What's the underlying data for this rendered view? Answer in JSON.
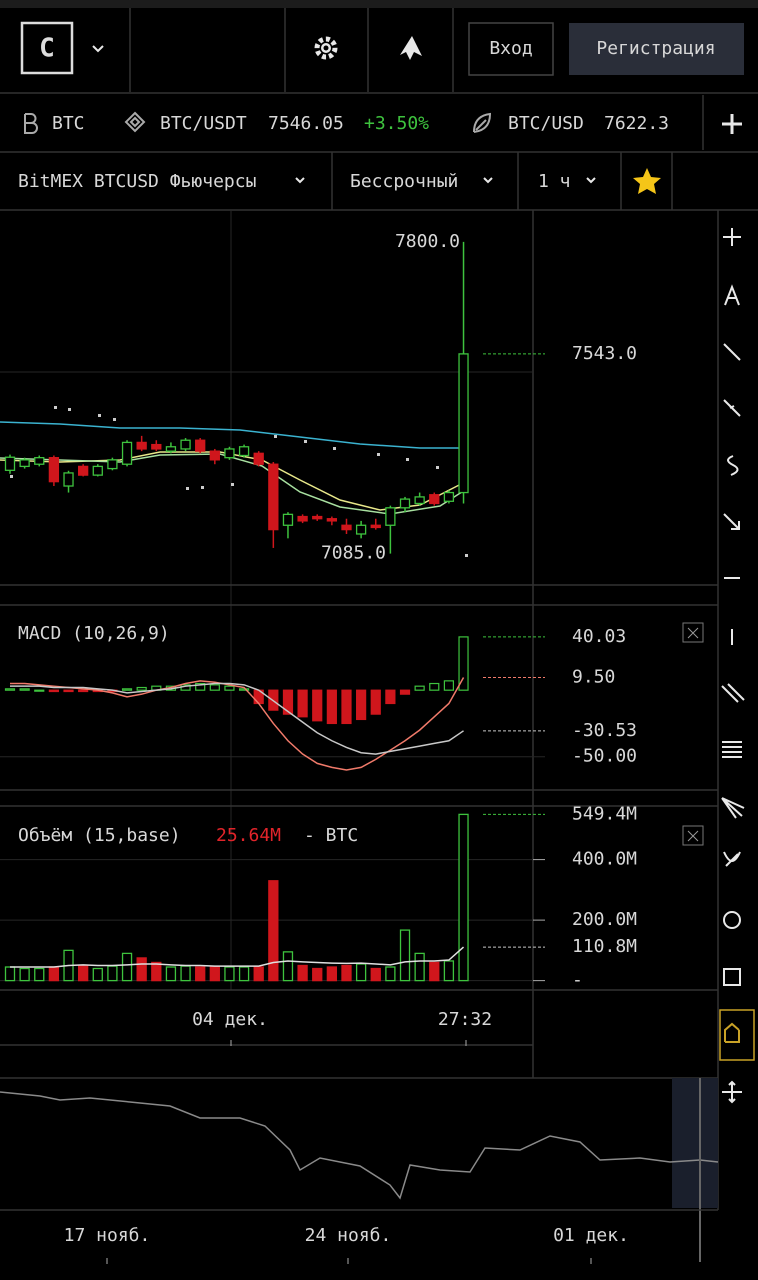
{
  "header": {
    "logo": "C",
    "login": "Вход",
    "register": "Регистрация"
  },
  "ticker": [
    {
      "symbol": "BTC"
    },
    {
      "symbol": "BTC/USDT",
      "price": 7546.05,
      "change": "+3.50%"
    },
    {
      "symbol": "BTC/USD",
      "price": 7622.3
    }
  ],
  "toolbar": {
    "instrument": "BitMEX BTCUSD Фьючерсы",
    "contract": "Бессрочный",
    "interval": "1 ч"
  },
  "chart_data": [
    {
      "type": "candlestick",
      "up_color": "#3ec33e",
      "down_color": "#d0161c",
      "ylim": [
        7013,
        7873
      ],
      "open": [
        7276,
        7285,
        7290,
        7305,
        7240,
        7285,
        7265,
        7280,
        7290,
        7340,
        7335,
        7320,
        7325,
        7345,
        7320,
        7305,
        7310,
        7315,
        7290,
        7150,
        7170,
        7170,
        7165,
        7150,
        7130,
        7150,
        7150,
        7190,
        7200,
        7220,
        7205,
        7225
      ],
      "high": [
        7312,
        7305,
        7310,
        7310,
        7275,
        7290,
        7290,
        7305,
        7345,
        7355,
        7345,
        7340,
        7350,
        7350,
        7325,
        7330,
        7335,
        7320,
        7295,
        7180,
        7175,
        7175,
        7170,
        7165,
        7160,
        7165,
        7195,
        7215,
        7225,
        7225,
        7230,
        7800
      ],
      "low": [
        7268,
        7280,
        7285,
        7240,
        7225,
        7262,
        7262,
        7276,
        7285,
        7320,
        7320,
        7315,
        7320,
        7315,
        7290,
        7300,
        7305,
        7285,
        7098,
        7120,
        7155,
        7160,
        7150,
        7130,
        7120,
        7140,
        7085,
        7180,
        7195,
        7195,
        7200,
        7200
      ],
      "close": [
        7306,
        7300,
        7305,
        7250,
        7270,
        7265,
        7285,
        7300,
        7340,
        7325,
        7325,
        7330,
        7345,
        7320,
        7300,
        7325,
        7330,
        7290,
        7140,
        7175,
        7160,
        7165,
        7160,
        7140,
        7150,
        7145,
        7190,
        7210,
        7215,
        7200,
        7225,
        7543
      ],
      "high_label": {
        "value": 7800,
        "label": "7800.0"
      },
      "low_label": {
        "value": 7085,
        "label": "7085.0"
      },
      "last_label": {
        "value": 7543,
        "label": "7543.0"
      }
    },
    {
      "type": "macd",
      "title": "MACD (10,26,9)",
      "ylim": [
        -75,
        64
      ],
      "yticks": [
        {
          "value": -50,
          "label": "-50.00"
        }
      ],
      "histogram": [
        1,
        1,
        0,
        -1,
        -1,
        -1,
        -1,
        -1,
        1,
        2,
        3,
        3,
        4,
        5,
        4,
        3,
        1,
        -10,
        -15,
        -18,
        -20,
        -23,
        -25,
        -25,
        -22,
        -18,
        -10,
        -3,
        3,
        5,
        7,
        40.03
      ],
      "lines": [
        {
          "color": "#f07a6a",
          "values": [
            5,
            5,
            4,
            3,
            2,
            1,
            0,
            -2,
            -5,
            -3,
            0,
            2,
            5,
            7,
            6,
            4,
            2,
            -10,
            -25,
            -38,
            -48,
            -55,
            -58,
            -60,
            -58,
            -52,
            -45,
            -38,
            -30,
            -20,
            -10,
            9.5
          ]
        },
        {
          "color": "#c8c8c8",
          "values": [
            3,
            3,
            3,
            2,
            2,
            2,
            1,
            0,
            -2,
            -1,
            0,
            1,
            3,
            4,
            5,
            5,
            4,
            0,
            -8,
            -16,
            -24,
            -32,
            -38,
            -43,
            -47,
            -48,
            -46,
            -44,
            -42,
            -40,
            -38,
            -30.53
          ]
        }
      ],
      "current": [
        {
          "value": 40.03,
          "label": "40.03",
          "color": "#3ec33e"
        },
        {
          "value": 9.5,
          "label": "9.50",
          "color": "#f07a6a"
        },
        {
          "value": -30.53,
          "label": "-30.53",
          "color": "#c8c8c8"
        }
      ]
    },
    {
      "type": "volume",
      "title": "Объём (15,base)",
      "legend_value": "25.64M",
      "legend_suffix": "- BTC",
      "ylim": [
        -31,
        630
      ],
      "yticks": [
        {
          "value": 0,
          "label": "-"
        },
        {
          "value": 200,
          "label": "200.0M"
        },
        {
          "value": 400,
          "label": "400.0M"
        }
      ],
      "values": [
        45,
        40,
        40,
        45,
        100,
        48,
        40,
        48,
        90,
        75,
        60,
        45,
        48,
        45,
        45,
        45,
        45,
        45,
        330,
        95,
        50,
        40,
        45,
        50,
        55,
        40,
        45,
        167,
        90,
        60,
        65,
        549.4
      ],
      "ma": {
        "color": "#e0e0e0",
        "values": [
          45,
          45,
          45,
          45,
          50,
          52,
          50,
          50,
          52,
          55,
          55,
          52,
          50,
          50,
          48,
          48,
          48,
          48,
          60,
          65,
          62,
          60,
          58,
          57,
          58,
          55,
          52,
          62,
          65,
          65,
          68,
          110.8
        ]
      },
      "current": [
        {
          "value": 549.4,
          "label": "549.4M",
          "color": "#3ec33e"
        },
        {
          "value": 110.8,
          "label": "110.8M",
          "color": "#c8c8c8"
        }
      ]
    }
  ],
  "time_axis": {
    "labels": [
      "04 дек.",
      "27:32"
    ]
  },
  "navigator": {
    "labels": [
      "17 нояб.",
      "24 нояб.",
      "01 дек."
    ]
  }
}
